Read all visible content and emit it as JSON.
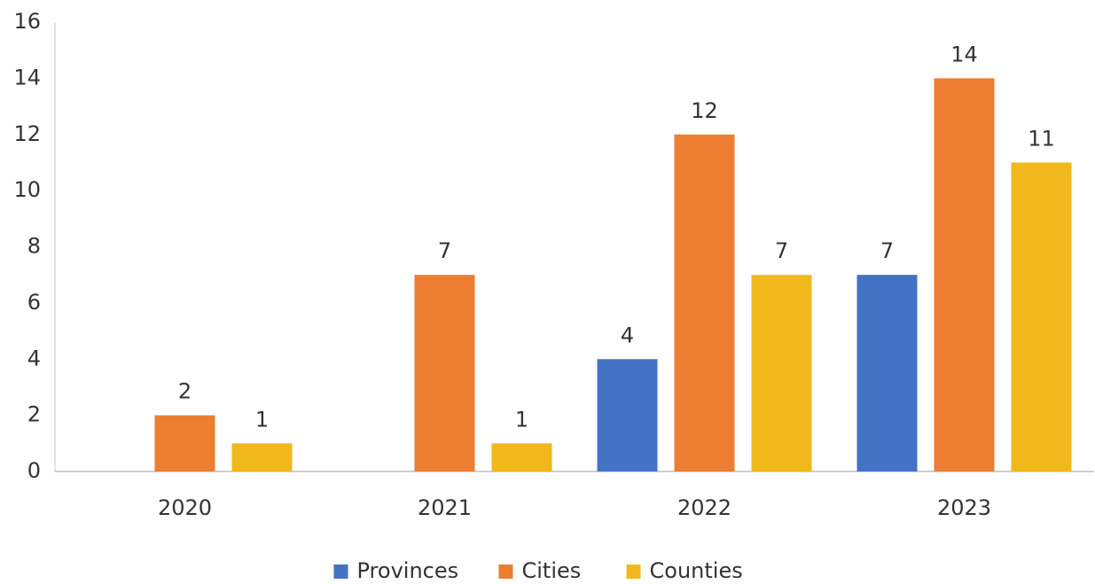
{
  "chart_data": {
    "type": "bar",
    "categories": [
      "2020",
      "2021",
      "2022",
      "2023"
    ],
    "series": [
      {
        "name": "Provinces",
        "color": "#4472c4",
        "values": [
          null,
          null,
          4,
          7
        ]
      },
      {
        "name": "Cities",
        "color": "#ed7d31",
        "values": [
          2,
          7,
          12,
          14
        ]
      },
      {
        "name": "Counties",
        "color": "#f0b81c",
        "values": [
          1,
          1,
          7,
          11
        ]
      }
    ],
    "ylim": [
      0,
      16
    ],
    "yticks": [
      0,
      2,
      4,
      6,
      8,
      10,
      12,
      14,
      16
    ],
    "grid": false,
    "legend": "bottom"
  }
}
